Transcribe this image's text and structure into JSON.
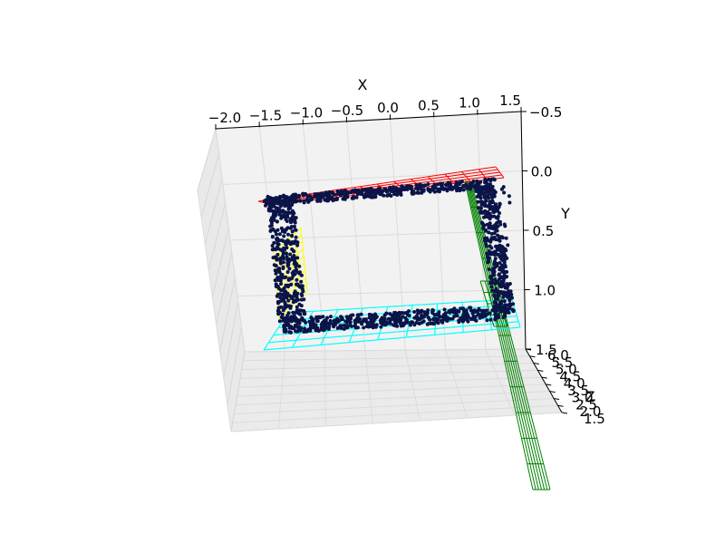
{
  "chart_data": {
    "type": "scatter3d",
    "title": "",
    "xlabel": "X",
    "ylabel": "Y",
    "zlabel": "Z",
    "x_ticks": [
      "−2.0",
      "−1.5",
      "−1.0",
      "−0.5",
      "0.0",
      "0.5",
      "1.0",
      "1.5"
    ],
    "y_ticks": [
      "−0.5",
      "0.0",
      "0.5",
      "1.0",
      "1.5"
    ],
    "z_ticks": [
      "6.0",
      "5.5",
      "5.0",
      "4.5",
      "4.0",
      "3.5",
      "3.0",
      "2.5",
      "2.0",
      "1.5"
    ],
    "xlim": [
      -2.0,
      1.5
    ],
    "ylim": [
      -0.5,
      1.5
    ],
    "zlim": [
      1.5,
      6.0
    ],
    "grid": true,
    "point_cloud_color": "#0a1448",
    "planes": [
      {
        "name": "",
        "color": "#ff0000",
        "role": "top"
      },
      {
        "name": "",
        "color": "#ffff00",
        "role": "left-wall"
      },
      {
        "name": "",
        "color": "#00ffff",
        "role": "floor"
      },
      {
        "name": "",
        "color": "#008000",
        "role": "right-slanted"
      }
    ]
  }
}
